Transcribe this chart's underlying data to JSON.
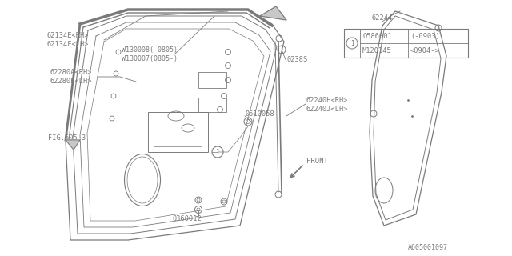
{
  "bg_color": "#ffffff",
  "lc": "#7a7a7a",
  "tc": "#7a7a7a",
  "labels": {
    "l1a": "62134E<RH>",
    "l1b": "62134F<LH>",
    "l2a": "W130008(-0805)",
    "l2b": "W130007(0805-)",
    "l3a": "62280A<RH>",
    "l3b": "62280B<LH>",
    "l4": "0238S",
    "l5": "0510058",
    "l6a": "62240H<RH>",
    "l6b": "62240J<LH>",
    "l7": "FIG.605-3",
    "l8": "0360012",
    "l9": "62244",
    "lb1": "Q586001",
    "lb2": "(-0903)",
    "lb3": "M120145",
    "lb4": "<0904->",
    "pn": "A605001097",
    "front": "FRONT"
  }
}
